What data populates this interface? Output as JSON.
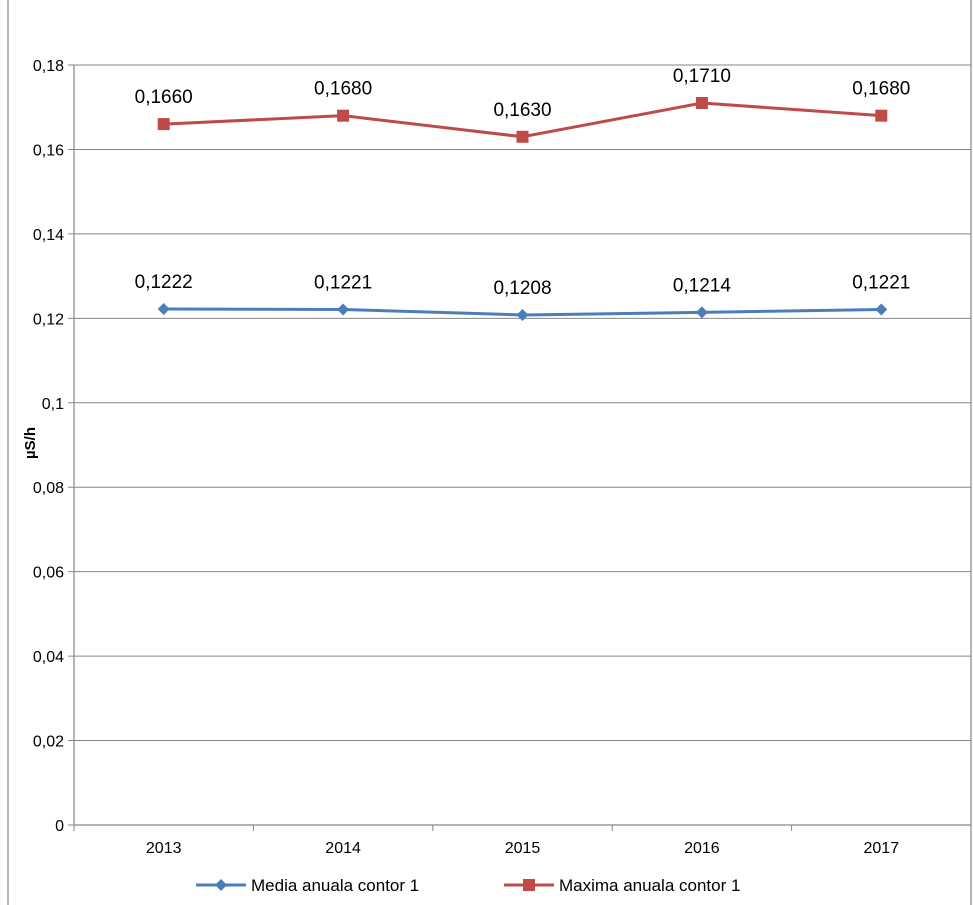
{
  "chart_data": {
    "type": "line",
    "title": "",
    "xlabel": "",
    "ylabel": "µS/h",
    "categories": [
      "2013",
      "2014",
      "2015",
      "2016",
      "2017"
    ],
    "ylim": [
      0,
      0.18
    ],
    "y_ticks": [
      {
        "value": 0,
        "label": "0"
      },
      {
        "value": 0.02,
        "label": "0,02"
      },
      {
        "value": 0.04,
        "label": "0,04"
      },
      {
        "value": 0.06,
        "label": "0,06"
      },
      {
        "value": 0.08,
        "label": "0,08"
      },
      {
        "value": 0.1,
        "label": "0,1"
      },
      {
        "value": 0.12,
        "label": "0,12"
      },
      {
        "value": 0.14,
        "label": "0,14"
      },
      {
        "value": 0.16,
        "label": "0,16"
      },
      {
        "value": 0.18,
        "label": "0,18"
      }
    ],
    "grid": true,
    "legend_position": "bottom",
    "series": [
      {
        "name": "Media anuala contor 1",
        "color": "#4A7EBB",
        "marker": "diamond",
        "values": [
          0.1222,
          0.1221,
          0.1208,
          0.1214,
          0.1221
        ],
        "labels": [
          "0,1222",
          "0,1221",
          "0,1208",
          "0,1214",
          "0,1221"
        ]
      },
      {
        "name": "Maxima anuala contor 1",
        "color": "#BE4B48",
        "marker": "square",
        "values": [
          0.166,
          0.168,
          0.163,
          0.171,
          0.168
        ],
        "labels": [
          "0,1660",
          "0,1680",
          "0,1630",
          "0,1710",
          "0,1680"
        ]
      }
    ]
  }
}
